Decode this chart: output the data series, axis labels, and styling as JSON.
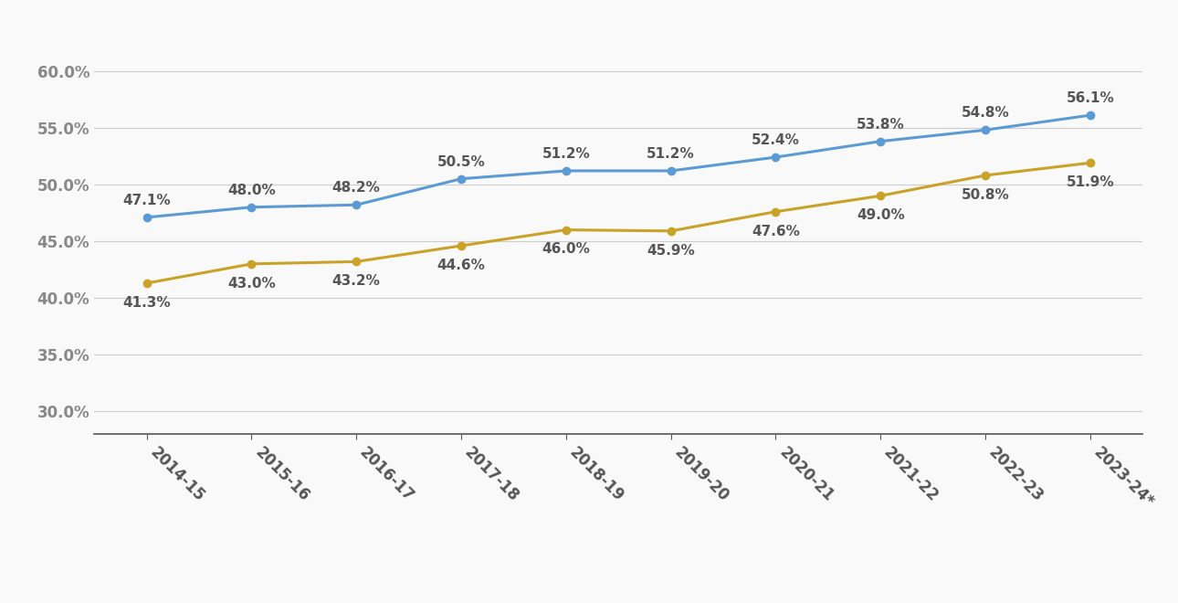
{
  "x_labels": [
    "2014-15",
    "2015-16",
    "2016-17",
    "2017-18",
    "2018-19",
    "2019-20",
    "2020-21",
    "2021-22",
    "2022-23",
    "2023-24*"
  ],
  "first_time": [
    47.1,
    48.0,
    48.2,
    50.5,
    51.2,
    51.2,
    52.4,
    53.8,
    54.8,
    56.1
  ],
  "all_undergrad": [
    41.3,
    43.0,
    43.2,
    44.6,
    46.0,
    45.9,
    47.6,
    49.0,
    50.8,
    51.9
  ],
  "first_time_color": "#5B9BD5",
  "all_undergrad_color": "#C9A227",
  "line_width": 2.2,
  "marker_size": 6,
  "ylim": [
    28,
    62
  ],
  "yticks": [
    30.0,
    35.0,
    40.0,
    45.0,
    50.0,
    55.0,
    60.0
  ],
  "background_color": "#f9f9f9",
  "grid_color": "#cccccc",
  "tick_fontsize": 12,
  "legend_fontsize": 12,
  "annotation_fontsize": 11
}
